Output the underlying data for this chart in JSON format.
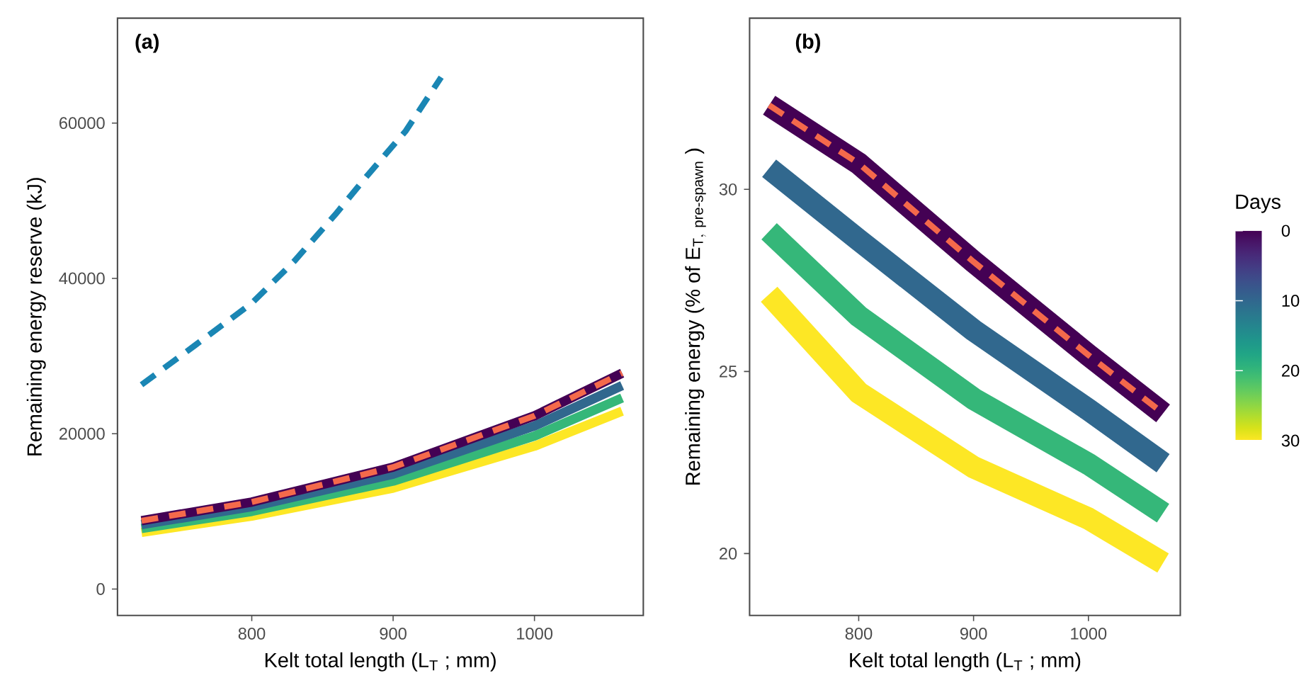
{
  "chart_data": [
    {
      "type": "line",
      "title": "(a)",
      "xlabel": "Kelt total length (L$_{T}$ ; mm)",
      "ylabel": "Remaining energy reserve (kJ)",
      "xlim": [
        705,
        1077
      ],
      "ylim": [
        -3400,
        73500
      ],
      "xticks": [
        800,
        900,
        1000
      ],
      "yticks": [
        0,
        20000,
        40000,
        60000
      ],
      "marker": "none",
      "x": [
        722,
        800,
        900,
        1000,
        1062
      ],
      "series": [
        {
          "color": "#fde725",
          "line_style": "solid",
          "values": [
            7300,
            9400,
            13000,
            18400,
            22900
          ]
        },
        {
          "color": "#35b779",
          "line_style": "solid",
          "values": [
            7800,
            10000,
            13900,
            19700,
            24600
          ]
        },
        {
          "color": "#31688e",
          "line_style": "solid",
          "values": [
            8300,
            10600,
            14800,
            21000,
            26200
          ]
        },
        {
          "color": "#440154",
          "line_style": "solid",
          "values": [
            8800,
            11200,
            15700,
            22300,
            27800
          ]
        },
        {
          "color": "#f4694b",
          "line_style": "dashed",
          "values": [
            8800,
            11200,
            15700,
            22300,
            27800
          ]
        },
        {
          "color": "#1a86b4",
          "line_style": "dashed",
          "x": [
            722,
            760,
            800,
            830,
            859,
            882,
            909,
            934
          ],
          "values": [
            26300,
            31400,
            36800,
            42200,
            48200,
            53300,
            59000,
            65900
          ]
        }
      ]
    },
    {
      "type": "line",
      "title": "(b)",
      "xlabel": "Kelt total length (L$_{T}$ ; mm)",
      "ylabel": "\\text{Remaining energy (\\% of }\\mathrm{E}_{\\mathrm{T},\\ \\text{pre-spawn}}\\text{ )}",
      "xlim": [
        705,
        1080
      ],
      "ylim": [
        18.3,
        34.7
      ],
      "xticks": [
        800,
        900,
        1000
      ],
      "yticks": [
        20,
        25,
        30
      ],
      "marker": "none",
      "x": [
        722,
        800,
        900,
        1000,
        1065
      ],
      "clabel": "Days",
      "clim": [
        0,
        30
      ],
      "cticks": [
        0,
        10,
        20,
        30
      ],
      "series": [
        {
          "color": "#fde725",
          "line_style": "solid",
          "values": [
            27.12,
            24.42,
            22.37,
            20.96,
            19.74
          ]
        },
        {
          "color": "#35b779",
          "line_style": "solid",
          "values": [
            28.85,
            26.52,
            24.25,
            22.46,
            21.11
          ]
        },
        {
          "color": "#31688e",
          "line_style": "solid",
          "values": [
            30.58,
            28.61,
            26.13,
            23.95,
            22.48
          ]
        },
        {
          "color": "#440154",
          "line_style": "solid",
          "values": [
            32.31,
            30.71,
            28.01,
            25.45,
            23.85
          ]
        },
        {
          "color": "#f4694b",
          "line_style": "dashed",
          "values": [
            32.31,
            30.71,
            28.01,
            25.45,
            23.85
          ]
        }
      ]
    }
  ]
}
